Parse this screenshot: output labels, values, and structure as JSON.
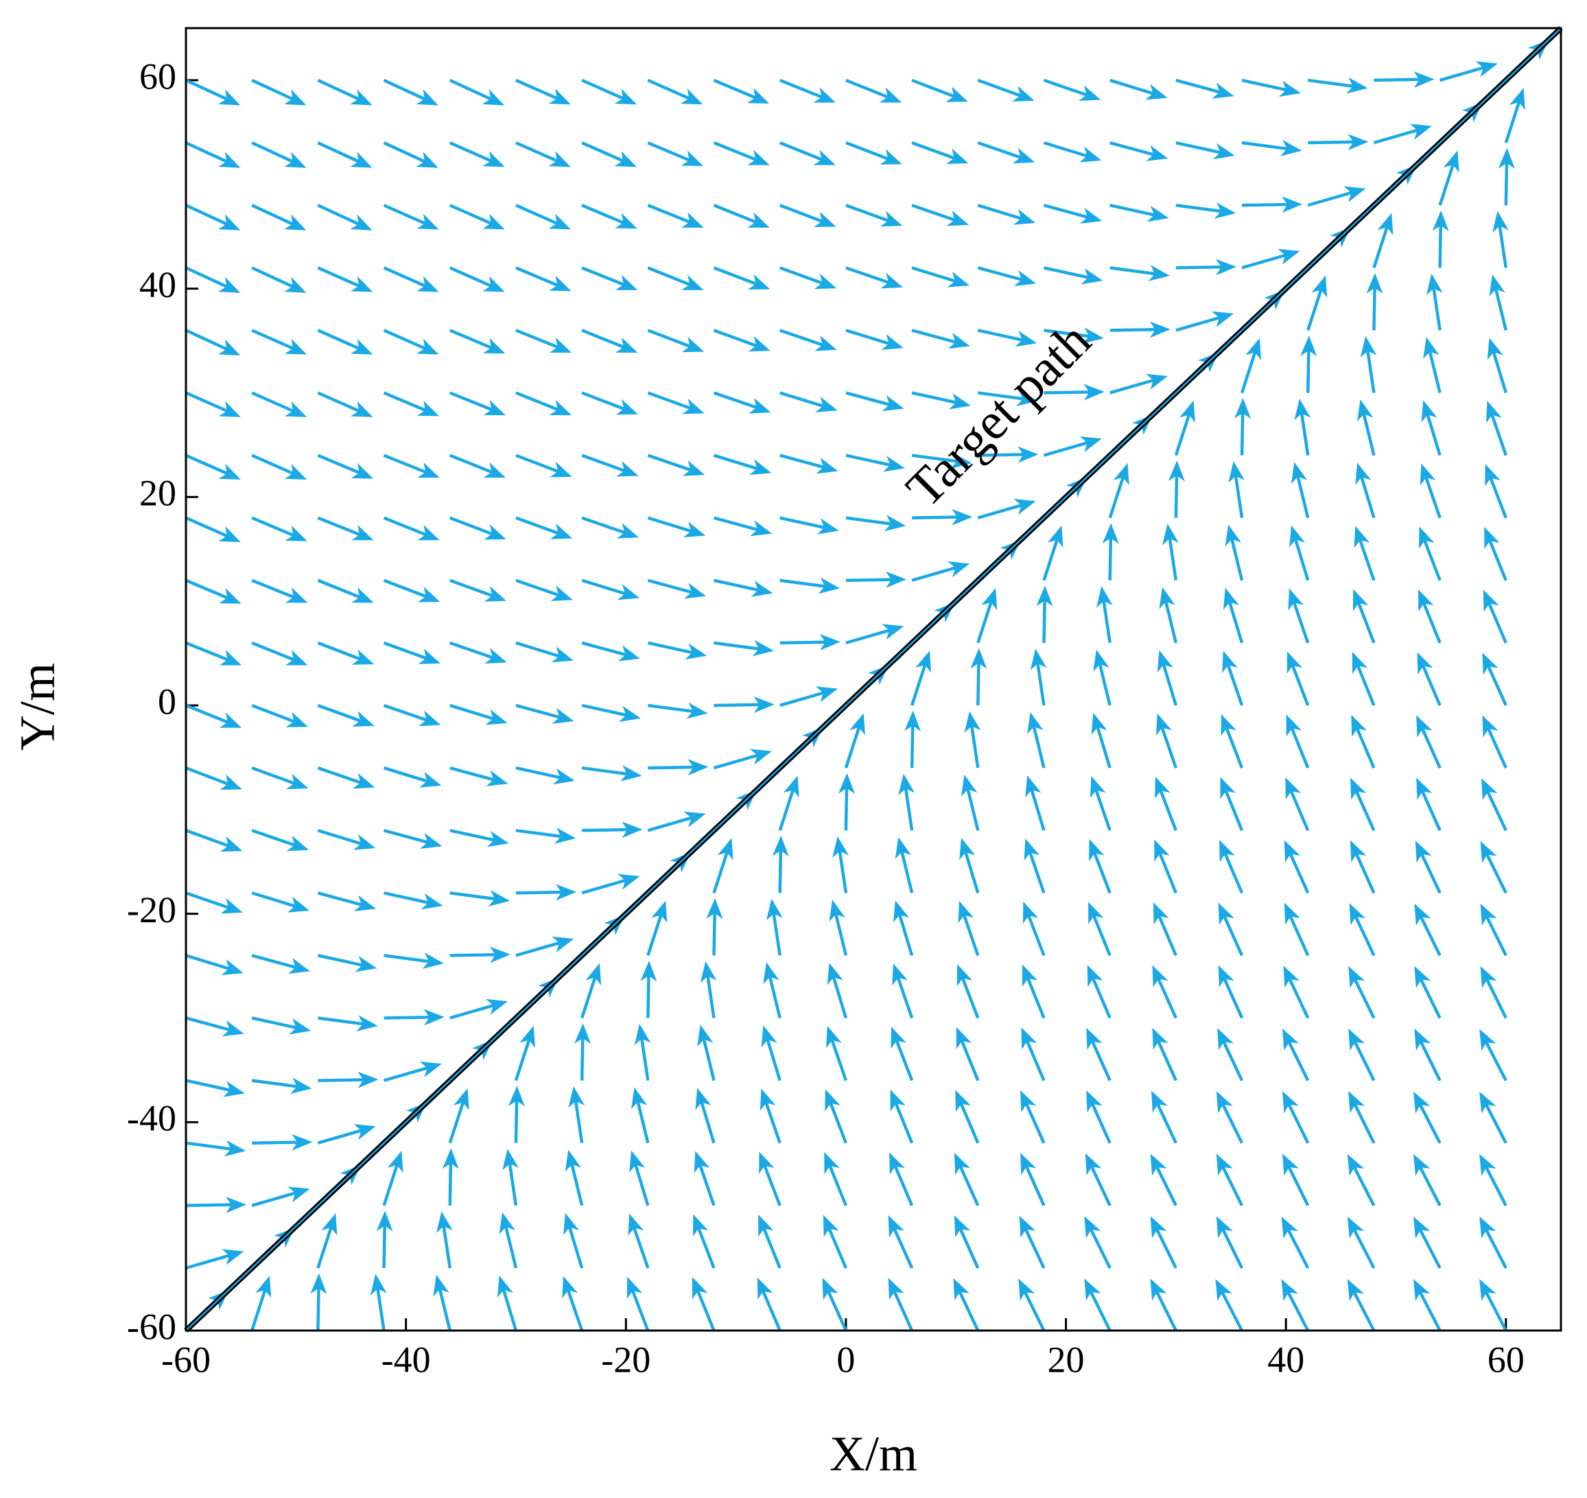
{
  "chart_data": {
    "type": "quiver",
    "xlabel": "X/m",
    "ylabel": "Y/m",
    "xlim": [
      -60,
      65
    ],
    "ylim": [
      -60,
      65
    ],
    "xticks": [
      -60,
      -40,
      -20,
      0,
      20,
      40,
      60
    ],
    "yticks": [
      -60,
      -40,
      -20,
      0,
      20,
      40,
      60
    ],
    "color": "#1ba9e6",
    "arrow_length": 5.5,
    "target_path": {
      "label": "Target path",
      "x": [
        -60,
        65
      ],
      "y": [
        -60,
        65
      ],
      "color": "#000000"
    },
    "x": [
      -60,
      -54,
      -48,
      -42,
      -36,
      -30,
      -24,
      -18,
      -12,
      -6,
      0,
      6,
      12,
      18,
      24,
      30,
      36,
      42,
      48,
      54,
      60
    ],
    "rows": [
      {
        "y": 60,
        "angles": [
          -26,
          -26,
          -26,
          -26,
          -26,
          -25,
          -25,
          -25,
          -24,
          -23,
          -23,
          -22,
          -21,
          -20,
          -18,
          -16,
          -13,
          -8,
          1,
          17,
          45
        ]
      },
      {
        "y": 54,
        "angles": [
          -26,
          -26,
          -26,
          -26,
          -25,
          -25,
          -25,
          -24,
          -23,
          -23,
          -22,
          -21,
          -20,
          -18,
          -16,
          -13,
          -8,
          1,
          17,
          45,
          73
        ]
      },
      {
        "y": 48,
        "angles": [
          -26,
          -26,
          -26,
          -25,
          -25,
          -25,
          -24,
          -23,
          -23,
          -22,
          -21,
          -20,
          -18,
          -16,
          -13,
          -8,
          1,
          17,
          45,
          73,
          89
        ]
      },
      {
        "y": 42,
        "angles": [
          -26,
          -26,
          -25,
          -25,
          -25,
          -24,
          -23,
          -23,
          -22,
          -21,
          -20,
          -18,
          -16,
          -13,
          -8,
          1,
          17,
          45,
          73,
          89,
          98
        ]
      },
      {
        "y": 36,
        "angles": [
          -26,
          -25,
          -25,
          -25,
          -24,
          -23,
          -23,
          -22,
          -21,
          -20,
          -18,
          -16,
          -13,
          -8,
          1,
          17,
          45,
          73,
          89,
          98,
          103
        ]
      },
      {
        "y": 30,
        "angles": [
          -25,
          -25,
          -25,
          -24,
          -23,
          -23,
          -22,
          -21,
          -20,
          -18,
          -16,
          -13,
          -8,
          1,
          17,
          45,
          73,
          89,
          98,
          103,
          106
        ]
      },
      {
        "y": 24,
        "angles": [
          -25,
          -25,
          -24,
          -23,
          -23,
          -22,
          -21,
          -20,
          -18,
          -16,
          -13,
          -8,
          1,
          17,
          45,
          73,
          89,
          98,
          103,
          106,
          108
        ]
      },
      {
        "y": 18,
        "angles": [
          -25,
          -24,
          -23,
          -23,
          -22,
          -21,
          -20,
          -18,
          -16,
          -13,
          -8,
          1,
          17,
          45,
          73,
          89,
          98,
          103,
          106,
          108,
          110
        ]
      },
      {
        "y": 12,
        "angles": [
          -24,
          -23,
          -23,
          -22,
          -21,
          -20,
          -18,
          -16,
          -13,
          -8,
          1,
          17,
          45,
          73,
          89,
          98,
          103,
          106,
          108,
          110,
          111
        ]
      },
      {
        "y": 6,
        "angles": [
          -23,
          -23,
          -22,
          -21,
          -20,
          -18,
          -16,
          -13,
          -8,
          1,
          17,
          45,
          73,
          89,
          98,
          103,
          106,
          108,
          110,
          111,
          112
        ]
      },
      {
        "y": 0,
        "angles": [
          -23,
          -22,
          -21,
          -20,
          -18,
          -16,
          -13,
          -8,
          1,
          17,
          45,
          73,
          89,
          98,
          103,
          106,
          108,
          110,
          111,
          112,
          113
        ]
      },
      {
        "y": -6,
        "angles": [
          -22,
          -21,
          -20,
          -18,
          -16,
          -13,
          -8,
          1,
          17,
          45,
          73,
          89,
          98,
          103,
          106,
          108,
          110,
          111,
          112,
          113,
          113
        ]
      },
      {
        "y": -12,
        "angles": [
          -21,
          -20,
          -18,
          -16,
          -13,
          -8,
          1,
          17,
          45,
          73,
          89,
          98,
          103,
          106,
          108,
          110,
          111,
          112,
          113,
          113,
          114
        ]
      },
      {
        "y": -18,
        "angles": [
          -20,
          -18,
          -16,
          -13,
          -8,
          1,
          17,
          45,
          73,
          89,
          98,
          103,
          106,
          108,
          110,
          111,
          112,
          113,
          113,
          114,
          115
        ]
      },
      {
        "y": -24,
        "angles": [
          -18,
          -16,
          -13,
          -8,
          1,
          17,
          45,
          73,
          89,
          98,
          103,
          106,
          108,
          110,
          111,
          112,
          113,
          113,
          114,
          115,
          115
        ]
      },
      {
        "y": -30,
        "angles": [
          -16,
          -13,
          -8,
          1,
          17,
          45,
          73,
          89,
          98,
          103,
          106,
          108,
          110,
          111,
          112,
          113,
          113,
          114,
          115,
          115,
          115
        ]
      },
      {
        "y": -36,
        "angles": [
          -13,
          -8,
          1,
          17,
          45,
          73,
          89,
          98,
          103,
          106,
          108,
          110,
          111,
          112,
          113,
          113,
          114,
          115,
          115,
          115,
          116
        ]
      },
      {
        "y": -42,
        "angles": [
          -8,
          1,
          17,
          45,
          73,
          89,
          98,
          103,
          106,
          108,
          110,
          111,
          112,
          113,
          113,
          114,
          115,
          115,
          115,
          116,
          116
        ]
      },
      {
        "y": -48,
        "angles": [
          1,
          17,
          45,
          73,
          89,
          98,
          103,
          106,
          108,
          110,
          111,
          112,
          113,
          113,
          114,
          115,
          115,
          115,
          116,
          116,
          116
        ]
      },
      {
        "y": -54,
        "angles": [
          17,
          45,
          73,
          89,
          98,
          103,
          106,
          108,
          110,
          111,
          112,
          113,
          113,
          114,
          115,
          115,
          115,
          116,
          116,
          116,
          116
        ]
      },
      {
        "y": -60,
        "angles": [
          45,
          73,
          89,
          98,
          103,
          106,
          108,
          110,
          111,
          112,
          113,
          113,
          114,
          115,
          115,
          115,
          116,
          116,
          116,
          116,
          116
        ]
      }
    ]
  }
}
